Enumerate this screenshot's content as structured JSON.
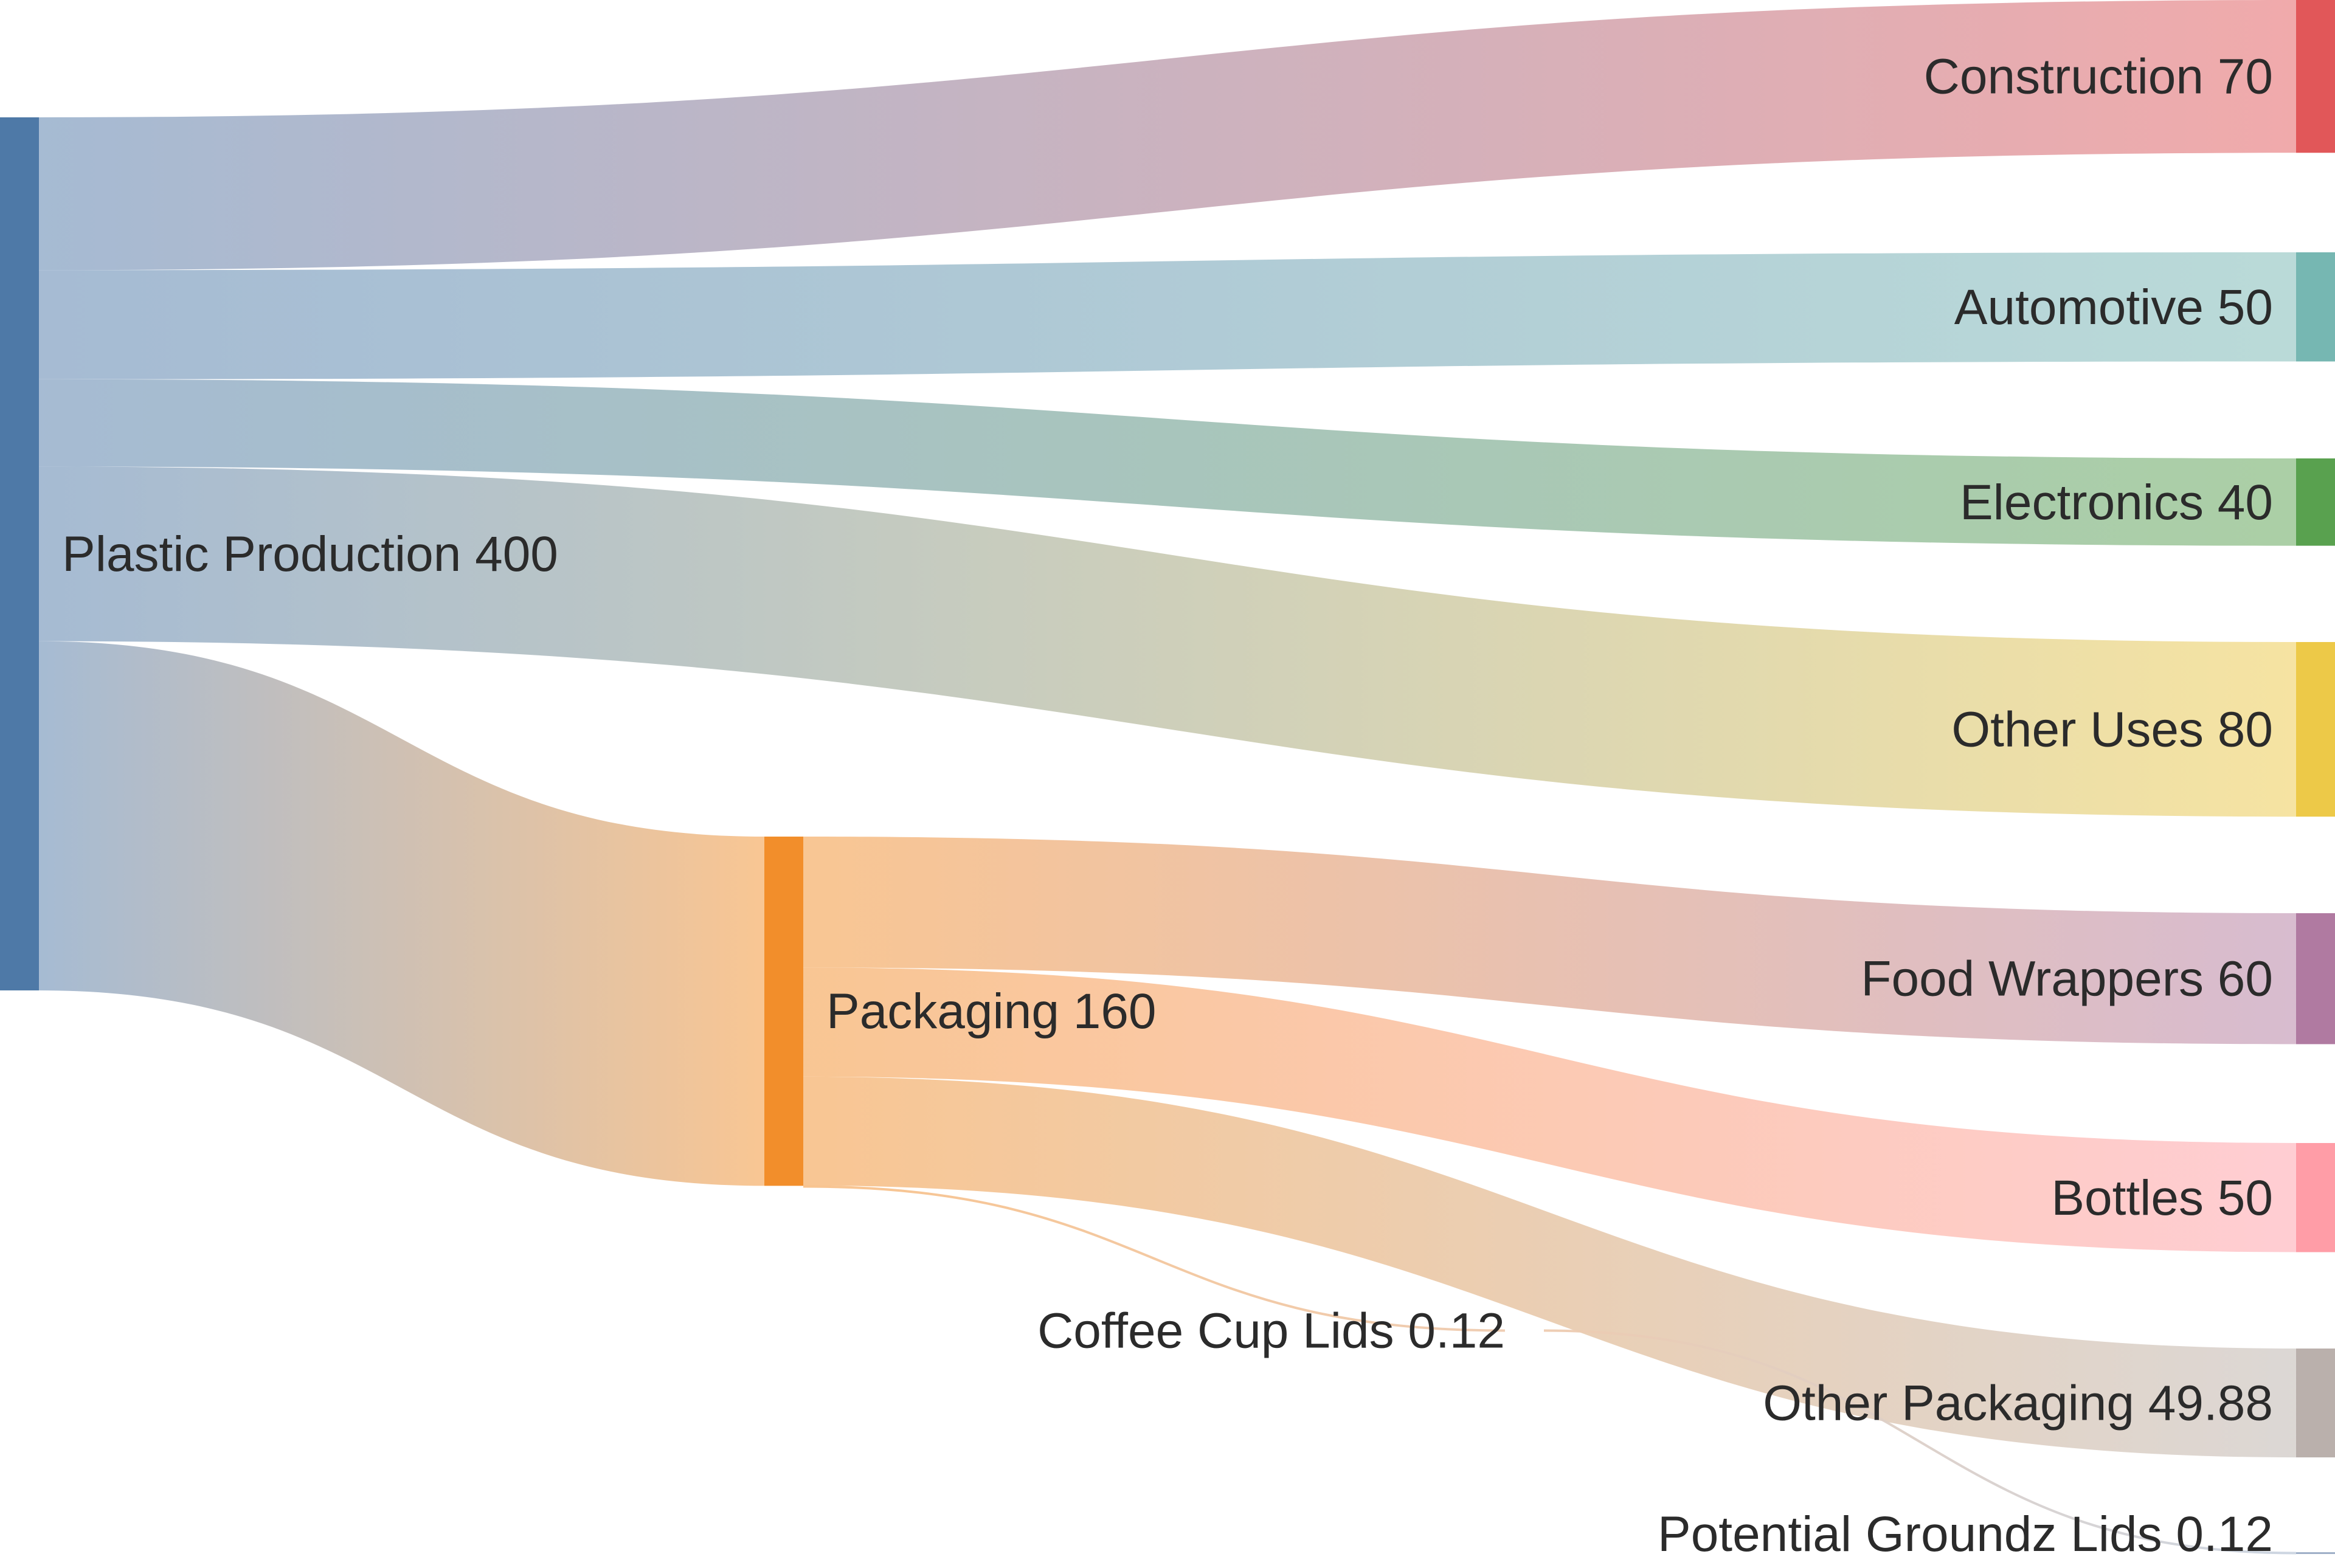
{
  "chart_data": {
    "type": "sankey",
    "title": "",
    "nodes": [
      {
        "id": "plastic",
        "name": "Plastic Production",
        "value": 400,
        "value_label": "400",
        "color": "#4e79a7"
      },
      {
        "id": "packaging",
        "name": "Packaging",
        "value": 160,
        "value_label": "160",
        "color": "#f28e2b"
      },
      {
        "id": "coffee",
        "name": "Coffee Cup Lids",
        "value": 0.12,
        "value_label": "0.12",
        "color": "#e0a070"
      },
      {
        "id": "construction",
        "name": "Construction",
        "value": 70,
        "value_label": "70",
        "color": "#e15759"
      },
      {
        "id": "automotive",
        "name": "Automotive",
        "value": 50,
        "value_label": "50",
        "color": "#76b7b2"
      },
      {
        "id": "electronics",
        "name": "Electronics",
        "value": 40,
        "value_label": "40",
        "color": "#59a14f"
      },
      {
        "id": "other_uses",
        "name": "Other Uses",
        "value": 80,
        "value_label": "80",
        "color": "#edc948"
      },
      {
        "id": "food_wrappers",
        "name": "Food Wrappers",
        "value": 60,
        "value_label": "60",
        "color": "#b07aa1"
      },
      {
        "id": "bottles",
        "name": "Bottles",
        "value": 50,
        "value_label": "50",
        "color": "#ff9da7"
      },
      {
        "id": "other_packaging",
        "name": "Other Packaging",
        "value": 49.88,
        "value_label": "49.88",
        "color": "#bab0ac"
      },
      {
        "id": "potential",
        "name": "Potential Groundz Lids",
        "value": 0.12,
        "value_label": "0.12",
        "color": "#9fb0c8"
      }
    ],
    "links": [
      {
        "source": "plastic",
        "target": "construction",
        "value": 70
      },
      {
        "source": "plastic",
        "target": "automotive",
        "value": 50
      },
      {
        "source": "plastic",
        "target": "electronics",
        "value": 40
      },
      {
        "source": "plastic",
        "target": "other_uses",
        "value": 80
      },
      {
        "source": "plastic",
        "target": "packaging",
        "value": 160
      },
      {
        "source": "packaging",
        "target": "food_wrappers",
        "value": 60
      },
      {
        "source": "packaging",
        "target": "bottles",
        "value": 50
      },
      {
        "source": "packaging",
        "target": "other_packaging",
        "value": 49.88
      },
      {
        "source": "packaging",
        "target": "coffee",
        "value": 0.12
      },
      {
        "source": "coffee",
        "target": "potential",
        "value": 0.12
      }
    ]
  }
}
